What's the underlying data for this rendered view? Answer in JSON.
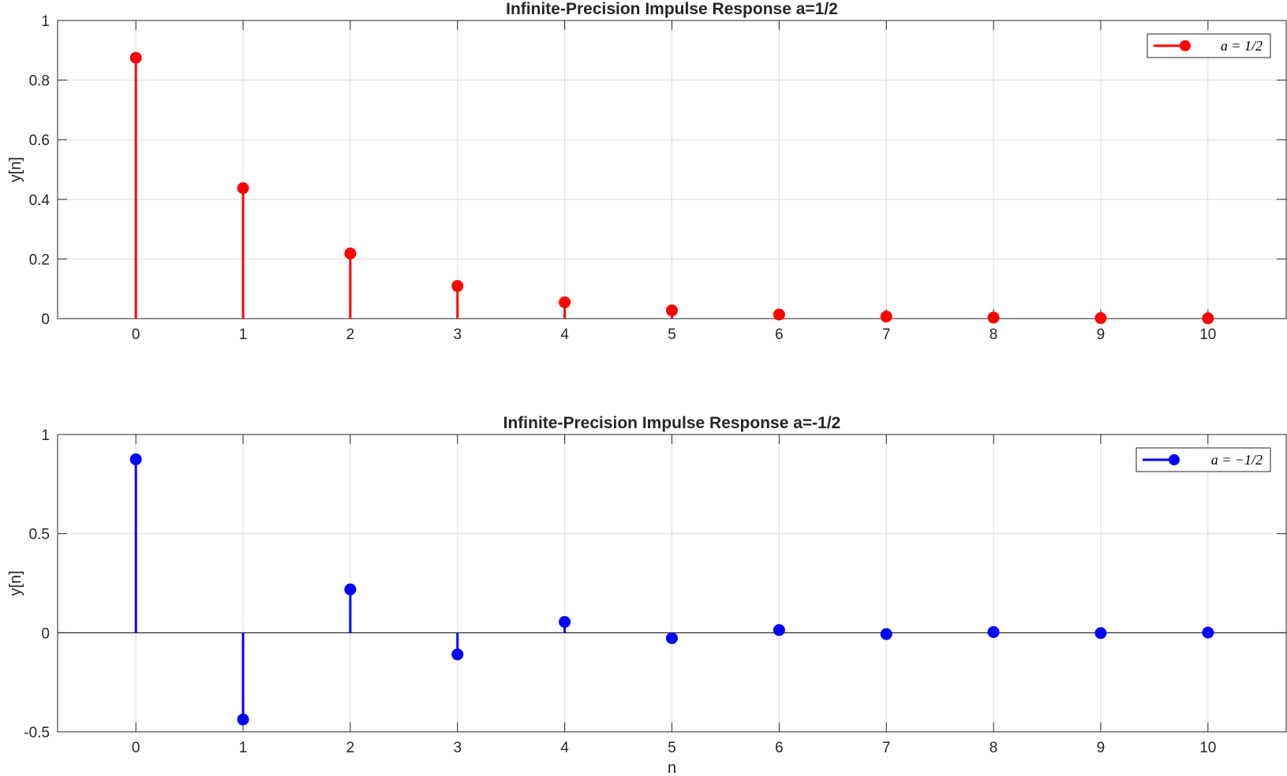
{
  "chart_data": [
    {
      "type": "stem",
      "title": "Infinite-Precision Impulse Response a=1/2",
      "xlabel": "",
      "ylabel": "y[n]",
      "xlim": [
        -0.73,
        10.73
      ],
      "ylim": [
        0,
        1
      ],
      "xticks": [
        0,
        1,
        2,
        3,
        4,
        5,
        6,
        7,
        8,
        9,
        10
      ],
      "yticks": [
        0,
        0.2,
        0.4,
        0.6,
        0.8,
        1
      ],
      "ytick_labels": [
        "0",
        "0.2",
        "0.4",
        "0.6",
        "0.8",
        "1"
      ],
      "grid": true,
      "legend_placement": "top-right",
      "color": "#ff0000",
      "series": [
        {
          "name": "a = 1/2",
          "x": [
            0,
            1,
            2,
            3,
            4,
            5,
            6,
            7,
            8,
            9,
            10
          ],
          "values": [
            0.875,
            0.4375,
            0.21875,
            0.109375,
            0.0546875,
            0.02734375,
            0.013671875,
            0.0068359375,
            0.00341796875,
            0.001708984375,
            0.0008544921875
          ]
        }
      ]
    },
    {
      "type": "stem",
      "title": "Infinite-Precision Impulse Response a=-1/2",
      "xlabel": "n",
      "ylabel": "y[n]",
      "xlim": [
        -0.73,
        10.73
      ],
      "ylim": [
        -0.5,
        1
      ],
      "xticks": [
        0,
        1,
        2,
        3,
        4,
        5,
        6,
        7,
        8,
        9,
        10
      ],
      "yticks": [
        -0.5,
        0,
        0.5,
        1
      ],
      "ytick_labels": [
        "-0.5",
        "0",
        "0.5",
        "1"
      ],
      "grid": true,
      "legend_placement": "top-right",
      "color": "#0000ff",
      "series": [
        {
          "name": "a = −1/2",
          "x": [
            0,
            1,
            2,
            3,
            4,
            5,
            6,
            7,
            8,
            9,
            10
          ],
          "values": [
            0.875,
            -0.4375,
            0.21875,
            -0.109375,
            0.0546875,
            -0.02734375,
            0.013671875,
            -0.0068359375,
            0.00341796875,
            -0.001708984375,
            0.0008544921875
          ]
        }
      ]
    }
  ]
}
